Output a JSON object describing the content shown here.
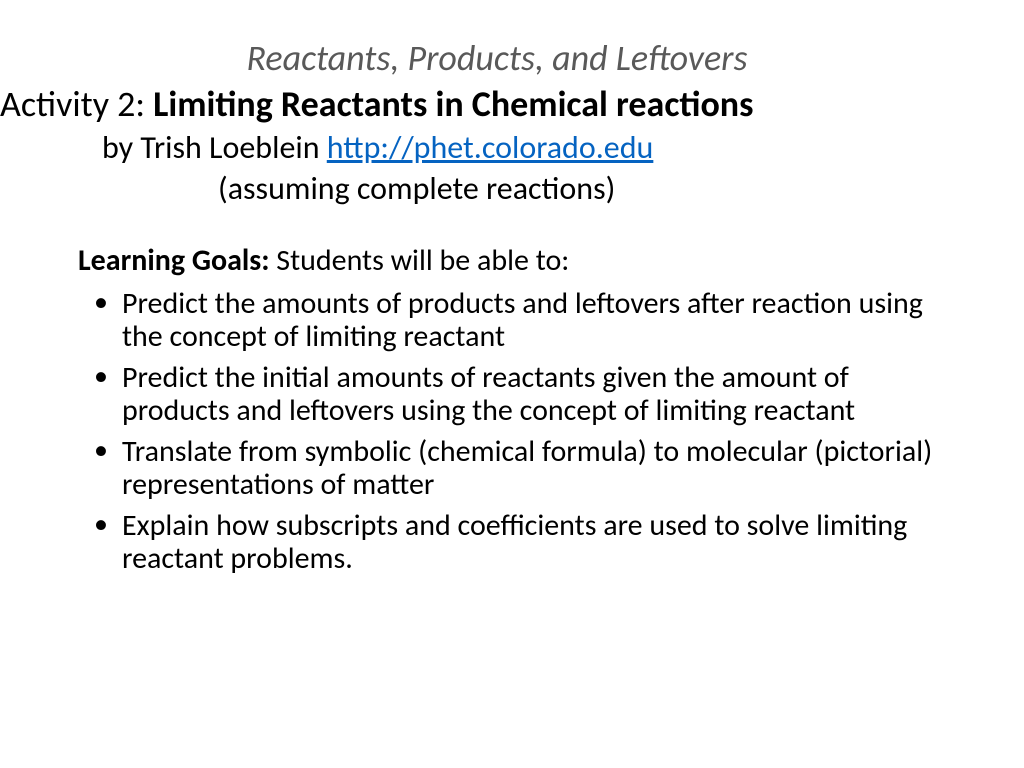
{
  "header": {
    "title_italic": "Reactants, Products, and Leftovers",
    "activity_label": "Activity 2: ",
    "activity_bold": "Limiting Reactants in Chemical reactions",
    "byline_prefix": "by Trish Loeblein  ",
    "byline_link_text": "http://phet.colorado.edu",
    "byline_link_href": "http://phet.colorado.edu",
    "assume": "(assuming complete reactions)"
  },
  "goals": {
    "intro_lead": "Learning Goals:  ",
    "intro_rest": "Students will be able to:",
    "items": [
      "Predict the amounts of products and leftovers after reaction using the concept of limiting reactant",
      "Predict the initial amounts of reactants given the amount of products and leftovers using the concept of limiting reactant",
      "Translate from symbolic (chemical formula) to molecular (pictorial) representations of matter",
      "Explain how subscripts and coefficients are used to solve limiting reactant problems."
    ]
  },
  "colors": {
    "title_gray": "#595959",
    "link_blue": "#0563c1",
    "text": "#000000",
    "background": "#ffffff"
  },
  "typography": {
    "family": "Calibri",
    "title_size_pt": 27,
    "body_size_pt": 22
  }
}
